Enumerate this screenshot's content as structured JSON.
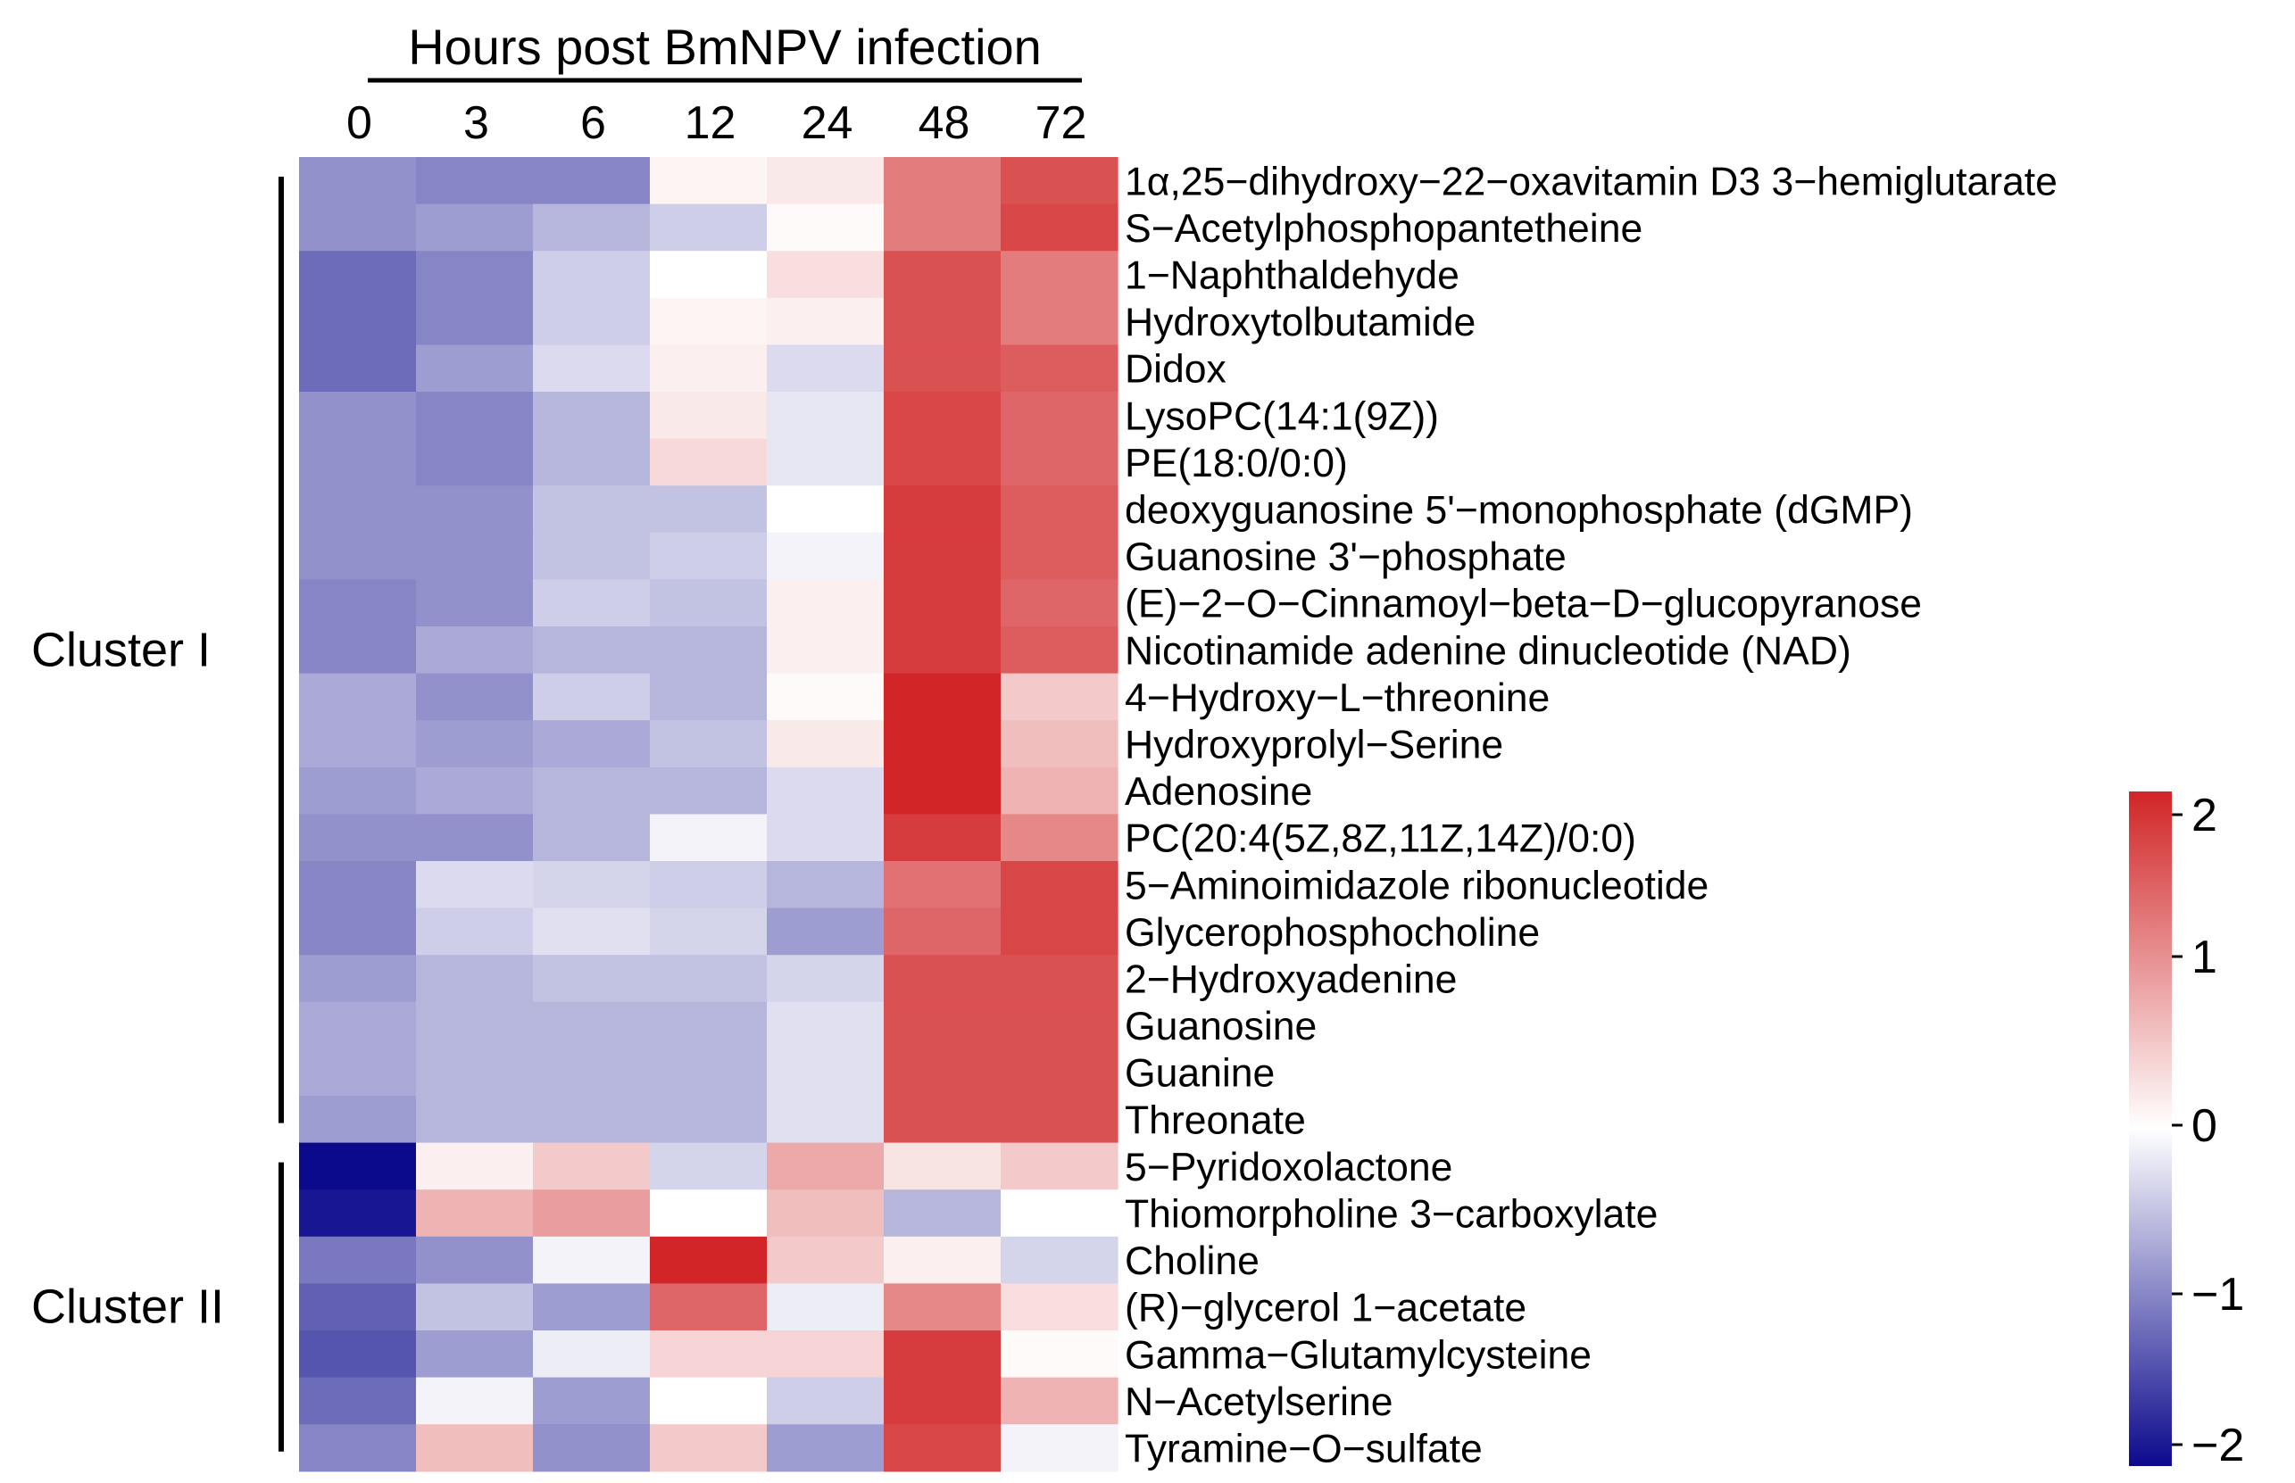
{
  "chart_data": {
    "type": "heatmap",
    "title": "",
    "header": "Hours post BmNPV infection",
    "xlabel": "Hours post BmNPV infection",
    "ylabel": "",
    "columns": [
      "0",
      "3",
      "6",
      "12",
      "24",
      "48",
      "72"
    ],
    "rows": [
      "1α,25−dihydroxy−22−oxavitamin D3 3−hemiglutarate",
      "S−Acetylphosphopantetheine",
      "1−Naphthaldehyde",
      "Hydroxytolbutamide",
      "Didox",
      "LysoPC(14:1(9Z))",
      "PE(18:0/0:0)",
      "deoxyguanosine 5'−monophosphate (dGMP)",
      "Guanosine 3'−phosphate",
      "(E)−2−O−Cinnamoyl−beta−D−glucopyranose",
      "Nicotinamide adenine dinucleotide (NAD)",
      "4−Hydroxy−L−threonine",
      "Hydroxyprolyl−Serine",
      "Adenosine",
      "PC(20:4(5Z,8Z,11Z,14Z)/0:0)",
      "5−Aminoimidazole ribonucleotide",
      "Glycerophosphocholine",
      "2−Hydroxyadenine",
      "Guanosine",
      "Guanine",
      "Threonate",
      "5−Pyridoxolactone",
      "Thiomorpholine 3−carboxylate",
      "Choline",
      "(R)−glycerol 1−acetate",
      "Gamma−Glutamylcysteine",
      "N−Acetylserine",
      "Tyramine−O−sulfate"
    ],
    "values": [
      [
        -0.9,
        -1.0,
        -1.0,
        0.1,
        0.2,
        1.2,
        1.6
      ],
      [
        -0.9,
        -0.8,
        -0.6,
        -0.4,
        0.05,
        1.2,
        1.7
      ],
      [
        -1.2,
        -1.0,
        -0.4,
        0.0,
        0.3,
        1.6,
        1.2
      ],
      [
        -1.2,
        -1.0,
        -0.4,
        0.1,
        0.15,
        1.6,
        1.2
      ],
      [
        -1.2,
        -0.8,
        -0.3,
        0.15,
        -0.3,
        1.6,
        1.5
      ],
      [
        -0.9,
        -1.0,
        -0.6,
        0.2,
        -0.2,
        1.7,
        1.4
      ],
      [
        -0.9,
        -1.0,
        -0.6,
        0.35,
        -0.2,
        1.7,
        1.4
      ],
      [
        -0.9,
        -0.9,
        -0.5,
        -0.5,
        0.0,
        1.8,
        1.5
      ],
      [
        -0.9,
        -0.9,
        -0.5,
        -0.4,
        -0.1,
        1.8,
        1.5
      ],
      [
        -1.0,
        -0.9,
        -0.4,
        -0.5,
        0.15,
        1.8,
        1.4
      ],
      [
        -1.0,
        -0.7,
        -0.6,
        -0.6,
        0.15,
        1.8,
        1.5
      ],
      [
        -0.7,
        -0.9,
        -0.4,
        -0.6,
        0.05,
        2.0,
        0.5
      ],
      [
        -0.7,
        -0.8,
        -0.7,
        -0.5,
        0.2,
        2.0,
        0.6
      ],
      [
        -0.8,
        -0.7,
        -0.6,
        -0.6,
        -0.3,
        2.1,
        0.7
      ],
      [
        -0.9,
        -0.9,
        -0.6,
        -0.1,
        -0.3,
        1.8,
        1.1
      ],
      [
        -1.0,
        -0.3,
        -0.35,
        -0.4,
        -0.6,
        1.3,
        1.7
      ],
      [
        -1.0,
        -0.4,
        -0.25,
        -0.35,
        -0.8,
        1.4,
        1.7
      ],
      [
        -0.8,
        -0.6,
        -0.5,
        -0.5,
        -0.35,
        1.6,
        1.6
      ],
      [
        -0.7,
        -0.6,
        -0.6,
        -0.6,
        -0.25,
        1.6,
        1.6
      ],
      [
        -0.7,
        -0.6,
        -0.6,
        -0.6,
        -0.25,
        1.6,
        1.6
      ],
      [
        -0.8,
        -0.6,
        -0.6,
        -0.6,
        -0.25,
        1.6,
        1.6
      ],
      [
        -2.2,
        0.15,
        0.5,
        -0.35,
        0.8,
        0.25,
        0.5
      ],
      [
        -1.9,
        0.7,
        0.9,
        0.0,
        0.6,
        -0.6,
        0.0
      ],
      [
        -1.1,
        -0.9,
        -0.1,
        2.0,
        0.5,
        0.15,
        -0.35
      ],
      [
        -1.3,
        -0.5,
        -0.8,
        1.4,
        -0.15,
        1.1,
        0.3
      ],
      [
        -1.4,
        -0.8,
        -0.15,
        0.4,
        0.4,
        1.8,
        0.05
      ],
      [
        -1.2,
        -0.1,
        -0.8,
        0.0,
        -0.4,
        1.8,
        0.7
      ],
      [
        -1.0,
        0.6,
        -0.9,
        0.5,
        -0.8,
        1.7,
        -0.1
      ]
    ],
    "clusters": [
      {
        "label": "Cluster I",
        "rows": [
          0,
          20
        ]
      },
      {
        "label": "Cluster II",
        "rows": [
          21,
          27
        ]
      }
    ],
    "colorbar": {
      "range": [
        -2,
        2
      ],
      "ticks": [
        2,
        1,
        0,
        -1,
        -2
      ],
      "tick_labels": [
        "2",
        "1",
        "0",
        "−1",
        "−2"
      ],
      "colors": {
        "low": "#0c0a8c",
        "mid": "#ffffff",
        "high": "#d12527"
      }
    },
    "grid": false,
    "legend": "right"
  }
}
